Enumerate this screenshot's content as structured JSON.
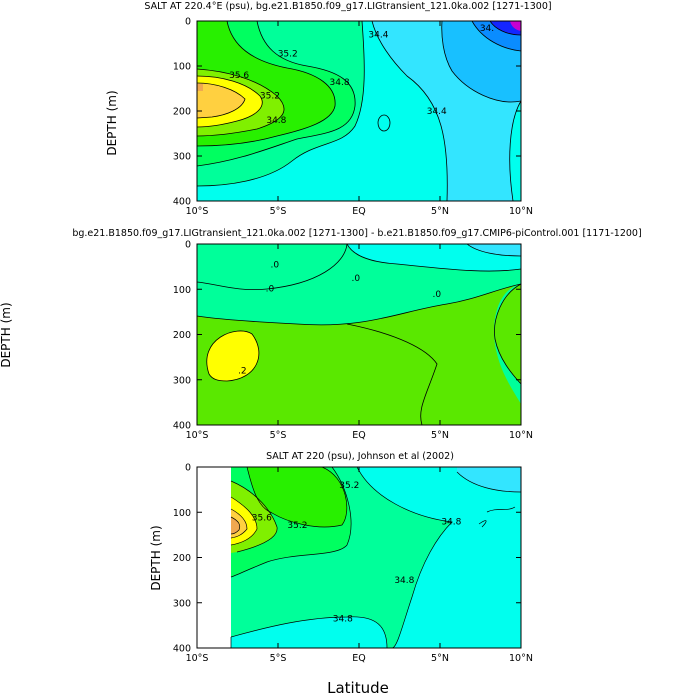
{
  "chart_data": [
    {
      "type": "contour",
      "title": "SALT AT 220.4°E (psu), bg.e21.B1850.f09_g17.LIGtransient_121.0ka.002 [1271-1300]",
      "ylabel": "DEPTH (m)",
      "xlabel": "",
      "xlim": [
        -10,
        10
      ],
      "ylim": [
        400,
        0
      ],
      "x_ticks": [
        -10,
        -5,
        0,
        5,
        10
      ],
      "x_tick_labels": [
        "10°S",
        "5°S",
        "EQ",
        "5°N",
        "10°N"
      ],
      "y_ticks": [
        0,
        100,
        200,
        300,
        400
      ],
      "y_tick_labels": [
        "0",
        "100",
        "200",
        "300",
        "400"
      ],
      "contour_labels": [
        {
          "text": "34.4",
          "x": 1.2,
          "y": 30
        },
        {
          "text": "34.",
          "x": 7.9,
          "y": 15
        },
        {
          "text": "35.2",
          "x": -4.4,
          "y": 72
        },
        {
          "text": "35.6",
          "x": -7.4,
          "y": 120
        },
        {
          "text": "34.8",
          "x": -1.2,
          "y": 135
        },
        {
          "text": "35.2",
          "x": -5.5,
          "y": 165
        },
        {
          "text": "34.4",
          "x": 4.8,
          "y": 200
        },
        {
          "text": "34.8",
          "x": -5.1,
          "y": 220
        }
      ]
    },
    {
      "type": "contour",
      "title": "bg.e21.B1850.f09_g17.LIGtransient_121.0ka.002 [1271-1300] - b.e21.B1850.f09_g17.CMIP6-piControl.001 [1171-1200]",
      "ylabel": "DEPTH (m)",
      "xlabel": "",
      "xlim": [
        -10,
        10
      ],
      "ylim": [
        400,
        0
      ],
      "x_ticks": [
        -10,
        -5,
        0,
        5,
        10
      ],
      "x_tick_labels": [
        "10°S",
        "5°S",
        "EQ",
        "5°N",
        "10°N"
      ],
      "y_ticks": [
        0,
        100,
        200,
        300,
        400
      ],
      "y_tick_labels": [
        "0",
        "100",
        "200",
        "300",
        "400"
      ],
      "contour_labels": [
        {
          "text": ".0",
          "x": -5.2,
          "y": 45
        },
        {
          "text": ".0",
          "x": -5.5,
          "y": 98
        },
        {
          "text": ".0",
          "x": -0.2,
          "y": 75
        },
        {
          "text": ".0",
          "x": 4.8,
          "y": 110
        },
        {
          "text": ".2",
          "x": -7.2,
          "y": 280
        }
      ]
    },
    {
      "type": "contour",
      "title": "SALT AT 220 (psu), Johnson et al (2002)",
      "ylabel": "DEPTH (m)",
      "xlabel": "Latitude",
      "xlim": [
        -10,
        10
      ],
      "ylim": [
        400,
        0
      ],
      "x_ticks": [
        -10,
        -5,
        0,
        5,
        10
      ],
      "x_tick_labels": [
        "10°S",
        "5°S",
        "EQ",
        "5°N",
        "10°N"
      ],
      "y_ticks": [
        0,
        100,
        200,
        300,
        400
      ],
      "y_tick_labels": [
        "0",
        "100",
        "200",
        "300",
        "400"
      ],
      "data_x_range": [
        -8,
        10
      ],
      "contour_labels": [
        {
          "text": "35.2",
          "x": -0.6,
          "y": 40
        },
        {
          "text": "35.6",
          "x": -6.0,
          "y": 112
        },
        {
          "text": "35.2",
          "x": -3.8,
          "y": 128
        },
        {
          "text": "34.8",
          "x": 5.7,
          "y": 120
        },
        {
          "text": "34.8",
          "x": 2.8,
          "y": 250
        },
        {
          "text": "34.8",
          "x": -1.0,
          "y": 335
        }
      ]
    }
  ],
  "colors": {
    "cyan": "#00ffee",
    "light_blue": "#33e5ff",
    "sky_blue": "#18c0ff",
    "blue": "#0a8cff",
    "deep_blue": "#1426ff",
    "magenta": "#c800d0",
    "aqua_green": "#00ff9a",
    "spring_green": "#00ff60",
    "green": "#28f000",
    "lime": "#80f000",
    "chartreuse": "#5ae800",
    "yellow": "#ffff00",
    "gold": "#ffd040",
    "orange": "#f0a850"
  }
}
